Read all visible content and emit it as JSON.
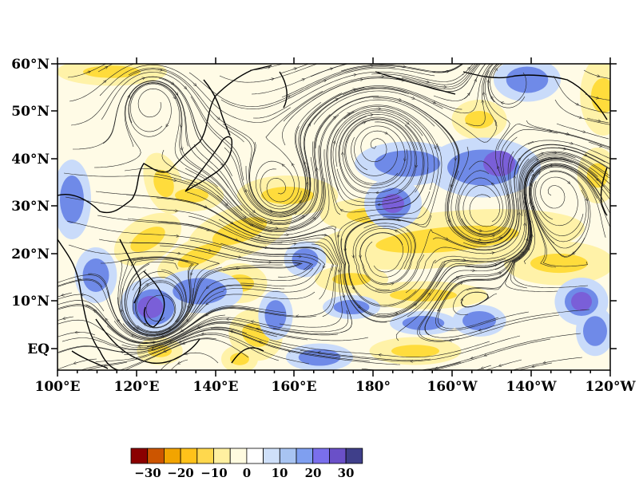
{
  "map": {
    "lat_labels": [
      "60°N",
      "50°N",
      "40°N",
      "30°N",
      "20°N",
      "10°N",
      "EQ"
    ],
    "lon_labels": [
      "100°E",
      "120°E",
      "140°E",
      "160°E",
      "180°",
      "160°W",
      "140°W",
      "120°W"
    ],
    "lon_range": [
      100,
      240
    ],
    "lat_range": [
      -4.5,
      60
    ]
  },
  "colorbar": {
    "colors": [
      "#8b0000",
      "#cc5500",
      "#f2a400",
      "#ffc21a",
      "#ffd84d",
      "#fff0a0",
      "#fffbe0",
      "#ffffff",
      "#cfe0fa",
      "#a8c4f2",
      "#7f9ff0",
      "#7a6fec",
      "#6a50c8",
      "#3f3f8a"
    ],
    "labels": [
      "−30",
      "−20",
      "−10",
      "0",
      "10",
      "20",
      "30"
    ]
  },
  "colors": {
    "positive": "#6f8ae8",
    "positive_strong": "#7a5fd8",
    "positive_light": "#c9dbfa",
    "negative": "#ffdc3c",
    "negative_light": "#fff2a8",
    "background": "#fffbe6"
  }
}
